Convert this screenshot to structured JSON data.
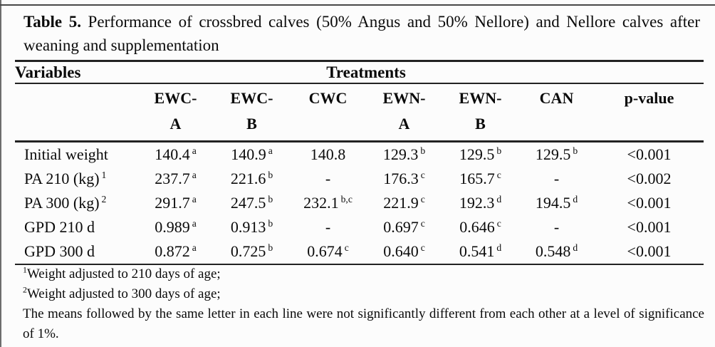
{
  "caption": {
    "label": "Table 5.",
    "text": " Performance of crossbred calves (50% Angus and 50% Nellore) and Nellore calves after weaning and supplementation"
  },
  "table": {
    "variables_header": "Variables",
    "treatments_header": "Treatments",
    "columns": [
      {
        "line1": "EWC-",
        "line2": "A"
      },
      {
        "line1": "EWC-",
        "line2": "B"
      },
      {
        "line1": "CWC",
        "line2": ""
      },
      {
        "line1": "EWN-",
        "line2": "A"
      },
      {
        "line1": "EWN-",
        "line2": "B"
      },
      {
        "line1": "CAN",
        "line2": ""
      },
      {
        "line1": "p-value",
        "line2": ""
      }
    ],
    "rows": [
      {
        "label": "Initial weight",
        "label_sup": "",
        "cells": [
          {
            "v": "140.4",
            "s": "a"
          },
          {
            "v": "140.9",
            "s": "a"
          },
          {
            "v": "140.8",
            "s": ""
          },
          {
            "v": "129.3",
            "s": "b"
          },
          {
            "v": "129.5",
            "s": "b"
          },
          {
            "v": "129.5",
            "s": "b"
          }
        ],
        "p": "<0.001"
      },
      {
        "label": "PA 210 (kg)",
        "label_sup": "1",
        "cells": [
          {
            "v": "237.7",
            "s": "a"
          },
          {
            "v": "221.6",
            "s": "b"
          },
          {
            "v": "-",
            "s": ""
          },
          {
            "v": "176.3",
            "s": "c"
          },
          {
            "v": "165.7",
            "s": "c"
          },
          {
            "v": "-",
            "s": ""
          }
        ],
        "p": "<0.002"
      },
      {
        "label": "PA 300 (kg)",
        "label_sup": "2",
        "cells": [
          {
            "v": "291.7",
            "s": "a"
          },
          {
            "v": "247.5",
            "s": "b"
          },
          {
            "v": "232.1",
            "s": "b,c"
          },
          {
            "v": "221.9",
            "s": "c"
          },
          {
            "v": "192.3",
            "s": "d"
          },
          {
            "v": "194.5",
            "s": "d"
          }
        ],
        "p": "<0.001"
      },
      {
        "label": "GPD 210 d",
        "label_sup": "",
        "cells": [
          {
            "v": "0.989",
            "s": "a"
          },
          {
            "v": "0.913",
            "s": "b"
          },
          {
            "v": "-",
            "s": ""
          },
          {
            "v": "0.697",
            "s": "c"
          },
          {
            "v": "0.646",
            "s": "c"
          },
          {
            "v": "-",
            "s": ""
          }
        ],
        "p": "<0.001"
      },
      {
        "label": "GPD 300 d",
        "label_sup": "",
        "cells": [
          {
            "v": "0.872",
            "s": "a"
          },
          {
            "v": "0.725",
            "s": "b"
          },
          {
            "v": "0.674",
            "s": "c"
          },
          {
            "v": "0.640",
            "s": "c"
          },
          {
            "v": "0.541",
            "s": "d"
          },
          {
            "v": "0.548",
            "s": "d"
          }
        ],
        "p": "<0.001"
      }
    ]
  },
  "footnotes": [
    {
      "sup": "1",
      "text": "Weight adjusted to 210 days of age;"
    },
    {
      "sup": "2",
      "text": "Weight adjusted to 300 days of age;"
    },
    {
      "sup": "",
      "text": "The means followed by the same letter in each line were not significantly different from each other at a level of significance of 1%."
    }
  ],
  "colors": {
    "text": "#0a0a0a",
    "rule": "#222222",
    "background": "#fcfcfc"
  }
}
